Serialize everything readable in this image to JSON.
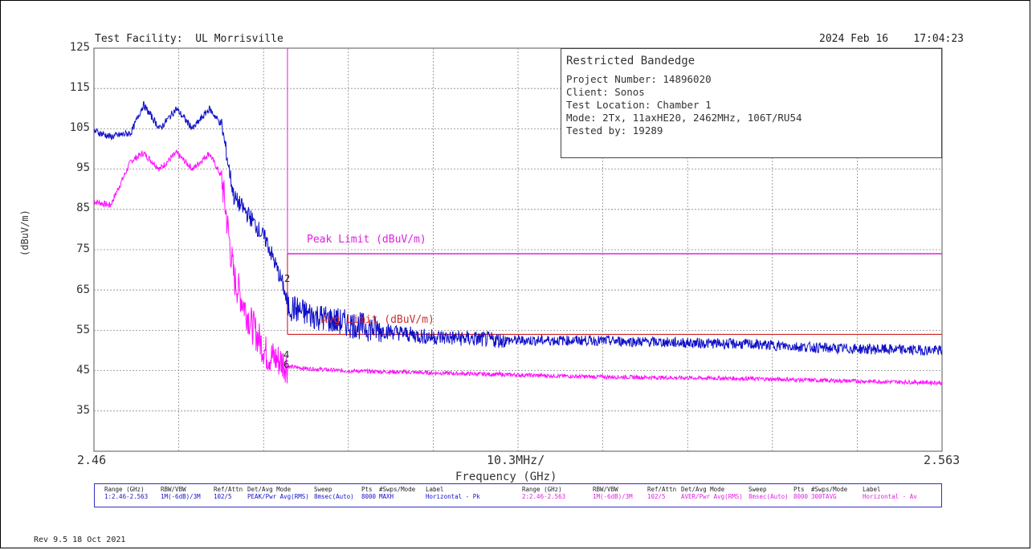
{
  "header": {
    "facility": "Test Facility:  UL Morrisville",
    "datetime": "2024 Feb 16    17:04:23"
  },
  "info_box": {
    "title": "Restricted Bandedge",
    "lines": [
      "Project Number: 14896020",
      "Client: Sonos",
      "Test Location: Chamber 1",
      "Mode: 2Tx, 11axHE20, 2462MHz, 106T/RU54",
      "Tested by: 19289"
    ]
  },
  "axes": {
    "ylabel": "(dBuV/m)",
    "xlabel": "Frequency (GHz)",
    "x_start": "2.46",
    "x_div": "10.3MHz/",
    "x_stop": "2.563",
    "yticks": [
      "125",
      "115",
      "105",
      "95",
      "85",
      "75",
      "65",
      "55",
      "45",
      "35"
    ]
  },
  "limits": {
    "peak_label": "Peak Limit (dBuV/m)",
    "avg_label": "Avg Limit (dBuV/m)"
  },
  "markers": [
    "2",
    "4",
    "6"
  ],
  "legend": {
    "headers": [
      "Range (GHz)",
      "RBW/VBW",
      "Ref/Attn",
      "Det/Avg Mode",
      "Sweep",
      "Pts",
      "#Swps/Mode",
      "Label"
    ],
    "trace1": [
      "1:2.46-2.563",
      "1M(-6dB)/3M",
      "102/5",
      "PEAK/Pwr Avg(RMS)",
      "8msec(Auto)",
      "8000",
      "MAXH",
      "Horizontal - Pk"
    ],
    "trace2": [
      "2:2.46-2.563",
      "1M(-6dB)/3M",
      "102/5",
      "AVER/Pwr Avg(RMS)",
      "8msec(Auto)",
      "8000",
      "300TAVG",
      "Horizontal - Av"
    ]
  },
  "footer": {
    "rev": "Rev 9.5 18 Oct 2021"
  },
  "colors": {
    "peak_trace": "#1010c8",
    "avg_trace": "#ff10ff",
    "avg_limit": "#d02020",
    "peak_limit": "#e020e0"
  },
  "chart_data": {
    "type": "line",
    "title": "Restricted Bandedge",
    "xlabel": "Frequency (GHz)",
    "ylabel": "(dBuV/m)",
    "xlim": [
      2.46,
      2.563
    ],
    "ylim": [
      25,
      125
    ],
    "grid": true,
    "band_edge_ghz": 2.4835,
    "limits": [
      {
        "name": "Peak Limit (dBuV/m)",
        "value": 74,
        "x_from": 2.4835
      },
      {
        "name": "Avg Limit (dBuV/m)",
        "value": 54,
        "x_from": 2.4835
      }
    ],
    "series": [
      {
        "x": [
          2.46,
          2.462,
          2.4645,
          2.466,
          2.468,
          2.47,
          2.472,
          2.474,
          2.4755,
          2.477,
          2.479,
          2.481,
          2.483,
          2.4835,
          2.486,
          2.49,
          2.495,
          2.5,
          2.51,
          2.52,
          2.53,
          2.54,
          2.55,
          2.563
        ],
        "y": [
          104.5,
          103,
          104,
          111,
          105,
          110,
          105,
          110,
          106,
          88,
          83,
          77,
          66,
          61,
          59,
          57,
          55,
          53.5,
          52.5,
          52.5,
          52,
          51.5,
          50.5,
          50
        ]
      },
      {
        "x": [
          2.46,
          2.462,
          2.4645,
          2.466,
          2.468,
          2.47,
          2.472,
          2.474,
          2.4755,
          2.477,
          2.479,
          2.481,
          2.483,
          2.4835,
          2.486,
          2.49,
          2.5,
          2.52,
          2.54,
          2.55,
          2.563
        ],
        "y": [
          87,
          86,
          97,
          99,
          95,
          99,
          95,
          99,
          93,
          68,
          57,
          49,
          47,
          46,
          45.5,
          45,
          44.5,
          43.5,
          43,
          42.5,
          42
        ]
      }
    ]
  }
}
